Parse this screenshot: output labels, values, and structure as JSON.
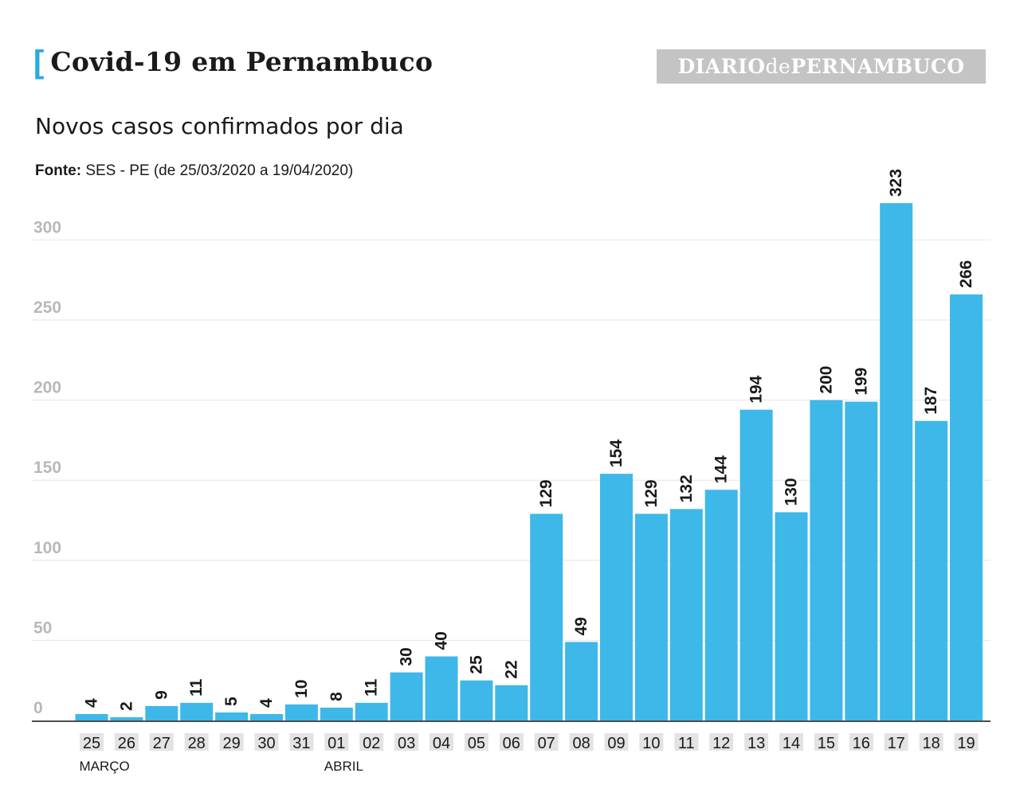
{
  "header": {
    "bracket": "[",
    "title": "Covid-19 em Pernambuco",
    "logo_part1": "DIARIO",
    "logo_part2": "de",
    "logo_part3": "PERNAMBUCO"
  },
  "subtitle": "Novos casos confirmados por dia",
  "source": {
    "label": "Fonte:",
    "text": " SES - PE (de 25/03/2020 a 19/04/2020)"
  },
  "colors": {
    "bar": "#3db8e8",
    "accent": "#28aae1",
    "grid": "#e6e6e6",
    "axis": "#4d4d4d",
    "label_bg": "#e3e3e3"
  },
  "chart_data": {
    "type": "bar",
    "title": "Novos casos confirmados por dia",
    "categories": [
      "25",
      "26",
      "27",
      "28",
      "29",
      "30",
      "31",
      "01",
      "02",
      "03",
      "04",
      "05",
      "06",
      "07",
      "08",
      "09",
      "10",
      "11",
      "12",
      "13",
      "14",
      "15",
      "16",
      "17",
      "18",
      "19"
    ],
    "values": [
      4,
      2,
      9,
      11,
      5,
      4,
      10,
      8,
      11,
      30,
      40,
      25,
      22,
      129,
      49,
      154,
      129,
      132,
      144,
      194,
      130,
      200,
      199,
      323,
      187,
      266
    ],
    "month_labels": [
      {
        "label": "MARÇO",
        "category_index": 0
      },
      {
        "label": "ABRIL",
        "category_index": 7
      }
    ],
    "yticks": [
      0,
      50,
      100,
      150,
      200,
      250,
      300
    ],
    "ylim": [
      0,
      350
    ],
    "grid": true,
    "xlabel": "",
    "ylabel": ""
  }
}
